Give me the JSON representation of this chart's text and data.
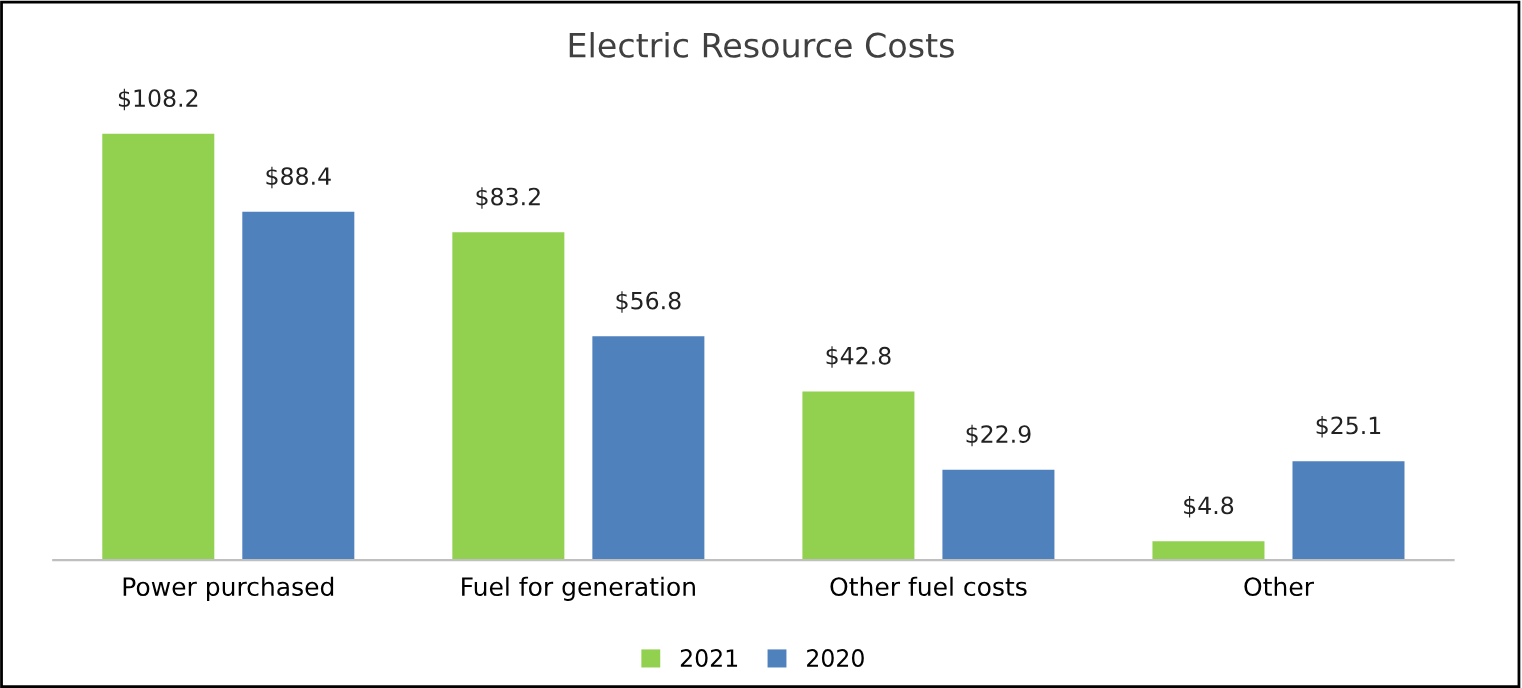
{
  "chart_data": {
    "type": "bar",
    "title": "Electric Resource Costs",
    "categories": [
      "Power purchased",
      "Fuel for generation",
      "Other fuel costs",
      "Other"
    ],
    "series": [
      {
        "name": "2021",
        "color": "#92d050",
        "values": [
          108.2,
          83.2,
          42.8,
          4.8
        ],
        "value_labels": [
          "$108.2",
          "$83.2",
          "$42.8",
          "$4.8"
        ]
      },
      {
        "name": "2020",
        "color": "#4f81bd",
        "values": [
          88.4,
          56.8,
          22.9,
          25.1
        ],
        "value_labels": [
          "$88.4",
          "$56.8",
          "$22.9",
          "$25.1"
        ]
      }
    ],
    "legend": "bottom",
    "grid": false,
    "tick_labels": "x"
  }
}
